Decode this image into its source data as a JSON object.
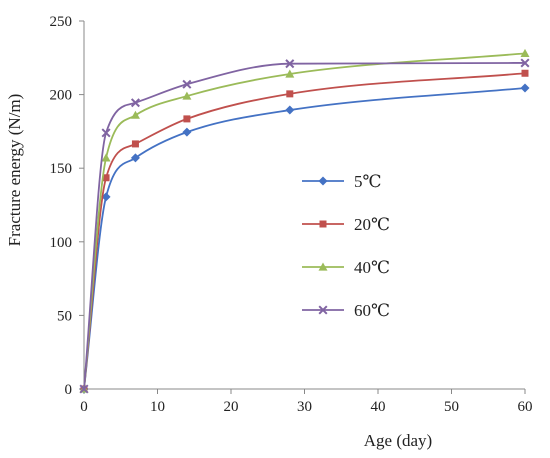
{
  "chart_data": {
    "type": "line",
    "title": "",
    "xlabel": "Age (day)",
    "ylabel": "Fracture energy (N/m)",
    "xlim": [
      0,
      60
    ],
    "ylim": [
      0,
      250
    ],
    "xticks": [
      0,
      10,
      20,
      30,
      40,
      50,
      60
    ],
    "yticks": [
      0,
      50,
      100,
      150,
      200,
      250
    ],
    "grid": false,
    "legend_position": "right",
    "smooth": true,
    "x": [
      0,
      3,
      7,
      14,
      28,
      60
    ],
    "series": [
      {
        "name": "5℃",
        "color": "#4472c4",
        "marker": "diamond",
        "values": [
          0,
          130.5,
          157,
          174.5,
          189.5,
          204.5
        ]
      },
      {
        "name": "20℃",
        "color": "#c0504d",
        "marker": "square",
        "values": [
          0,
          143.5,
          166.5,
          183.5,
          200.5,
          214.5
        ]
      },
      {
        "name": "40℃",
        "color": "#9bbb59",
        "marker": "triangle",
        "values": [
          0,
          157,
          186,
          199,
          214,
          228
        ]
      },
      {
        "name": "60℃",
        "color": "#8064a2",
        "marker": "x",
        "values": [
          0,
          174,
          194.5,
          207,
          221,
          221.5
        ]
      }
    ]
  }
}
